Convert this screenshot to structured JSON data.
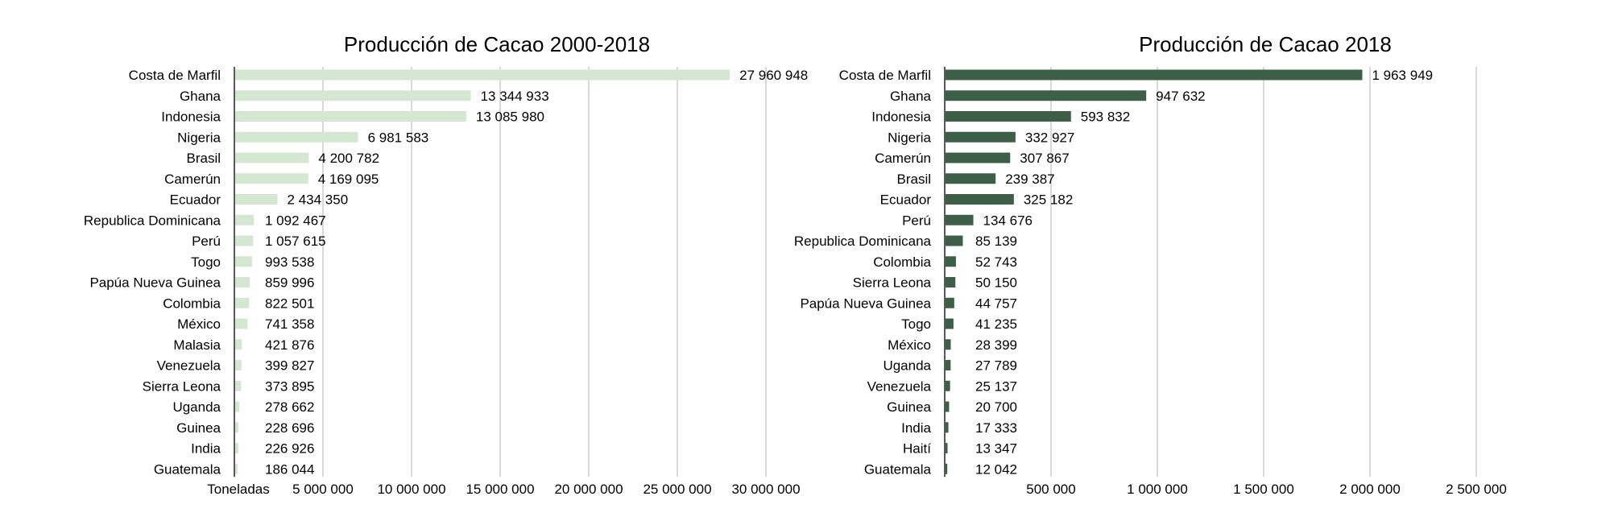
{
  "chart_data": [
    {
      "type": "bar",
      "orientation": "horizontal",
      "title": "Producción de Cacao 2000-2018",
      "xlabel": "Toneladas",
      "ylabel": "",
      "xlim": [
        0,
        30000000
      ],
      "xticks": [
        5000000,
        10000000,
        15000000,
        20000000,
        25000000,
        30000000
      ],
      "xtick_labels": [
        "5 000 000",
        "10 000 000",
        "15 000 000",
        "20 000 000",
        "25 000 000",
        "30 000 000"
      ],
      "grid": true,
      "bar_color": "#d3e7d1",
      "categories": [
        "Costa de Marfil",
        "Ghana",
        "Indonesia",
        "Nigeria",
        "Brasil",
        "Camerún",
        "Ecuador",
        "Republica Dominicana",
        "Perú",
        "Togo",
        "Papúa Nueva Guinea",
        "Colombia",
        "México",
        "Malasia",
        "Venezuela",
        "Sierra Leona",
        "Uganda",
        "Guinea",
        "India",
        "Guatemala"
      ],
      "values": [
        27960948,
        13344933,
        13085980,
        6981583,
        4200782,
        4169095,
        2434350,
        1092467,
        1057615,
        993538,
        859996,
        822501,
        741358,
        421876,
        399827,
        373895,
        278662,
        228696,
        226926,
        186044
      ],
      "value_labels": [
        "27 960 948",
        "13 344 933",
        "13 085 980",
        "6 981 583",
        "4 200 782",
        "4 169 095",
        "2 434 350",
        "1 092 467",
        "1 057 615",
        "993 538",
        "859 996",
        "822 501",
        "741 358",
        "421 876",
        "399 827",
        "373 895",
        "278 662",
        "228 696",
        "226 926",
        "186 044"
      ]
    },
    {
      "type": "bar",
      "orientation": "horizontal",
      "title": "Producción de Cacao 2018",
      "xlabel": "",
      "ylabel": "",
      "xlim": [
        0,
        2500000
      ],
      "xticks": [
        500000,
        1000000,
        1500000,
        2000000,
        2500000
      ],
      "xtick_labels": [
        "500 000",
        "1 000 000",
        "1 500 000",
        "2 000 000",
        "2 500 000"
      ],
      "grid": true,
      "bar_color": "#3d5f48",
      "categories": [
        "Costa de Marfil",
        "Ghana",
        "Indonesia",
        "Nigeria",
        "Camerún",
        "Brasil",
        "Ecuador",
        "Perú",
        "Republica Dominicana",
        "Colombia",
        "Sierra Leona",
        "Papúa Nueva Guinea",
        "Togo",
        "México",
        "Uganda",
        "Venezuela",
        "Guinea",
        "India",
        "Haití",
        "Guatemala"
      ],
      "values": [
        1963949,
        947632,
        593832,
        332927,
        307867,
        239387,
        325182,
        134676,
        85139,
        52743,
        50150,
        44757,
        41235,
        28399,
        27789,
        25137,
        20700,
        17333,
        13347,
        12042
      ],
      "value_labels": [
        "1 963 949",
        "947 632",
        "593 832",
        "332 927",
        "307 867",
        "239 387",
        "325 182",
        "134 676",
        "85 139",
        "52 743",
        "50 150",
        "44 757",
        "41 235",
        "28 399",
        "27 789",
        "25 137",
        "20 700",
        "17 333",
        "13 347",
        "12 042"
      ]
    }
  ]
}
